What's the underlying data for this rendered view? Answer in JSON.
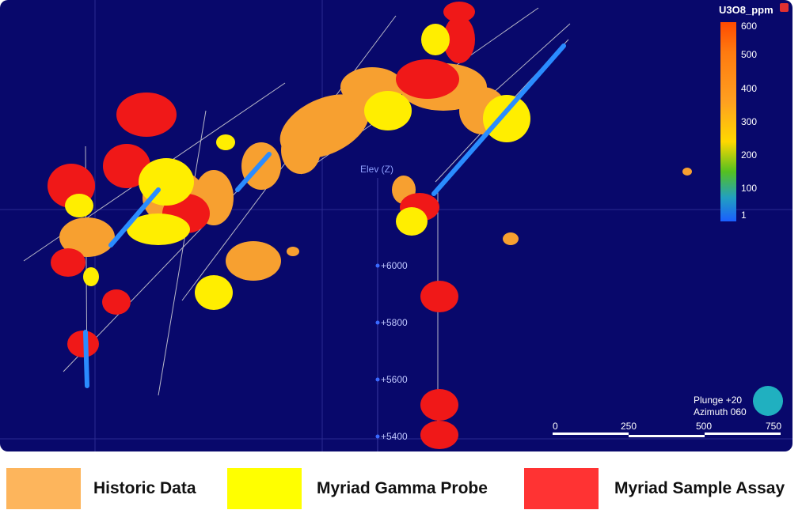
{
  "colorbar": {
    "title": "U3O8_ppm",
    "labels": [
      "600",
      "500",
      "400",
      "300",
      "200",
      "100",
      "1"
    ]
  },
  "elevation_axis": {
    "title": "Elev (Z)",
    "labels": [
      "+6000",
      "+5800",
      "+5600",
      "+5400"
    ]
  },
  "view": {
    "plunge": "Plunge +20",
    "azimuth": "Azimuth 060"
  },
  "scale_bar": {
    "labels": [
      "0",
      "250",
      "500",
      "750"
    ]
  },
  "legend": [
    {
      "label": "Historic Data",
      "color": "#fdb55c"
    },
    {
      "label": "Myriad Gamma Probe",
      "color": "#ffff00"
    },
    {
      "label": "Myriad Sample Assay",
      "color": "#ff3333"
    }
  ]
}
